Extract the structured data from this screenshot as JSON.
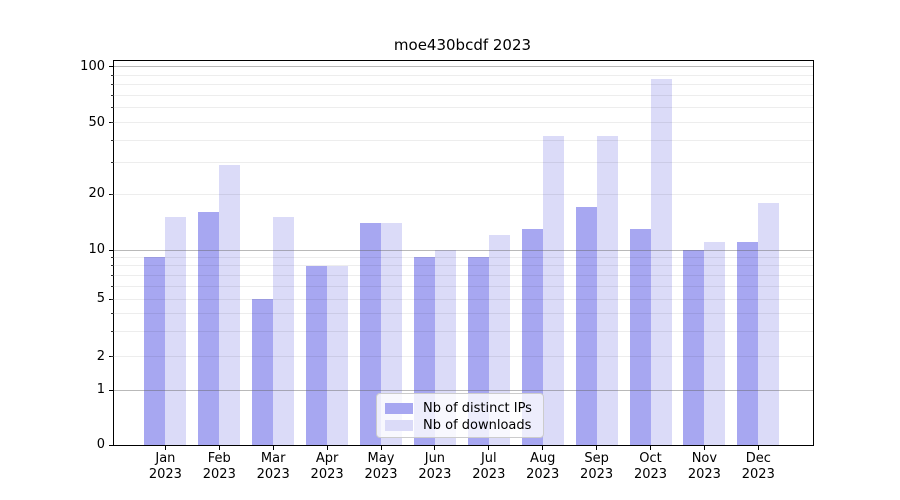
{
  "title": "moe430bcdf 2023",
  "chart_data": {
    "type": "bar",
    "title": "moe430bcdf 2023",
    "categories": [
      "Jan",
      "Feb",
      "Mar",
      "Apr",
      "May",
      "Jun",
      "Jul",
      "Aug",
      "Sep",
      "Oct",
      "Nov",
      "Dec"
    ],
    "x_year_label": "2023",
    "series": [
      {
        "name": "Nb of distinct IPs",
        "color": "#a7a7f1",
        "values": [
          9,
          16,
          5,
          8,
          14,
          9,
          9,
          13,
          17,
          13,
          10,
          11
        ]
      },
      {
        "name": "Nb of downloads",
        "color": "#dbdbf8",
        "values": [
          15,
          29,
          15,
          8,
          14,
          10,
          12,
          42,
          42,
          86,
          11,
          18
        ]
      }
    ],
    "ylabel": "",
    "xlabel": "",
    "yscale": "log-above-1-linear-below",
    "ytick_labels": [
      "0",
      "1",
      "2",
      "5",
      "10",
      "20",
      "50",
      "100"
    ],
    "ylim": [
      0,
      107
    ],
    "grid": "horizontal major+minor, drawn over bars",
    "legend_position": "inside-bottom-center"
  },
  "legend": {
    "items": [
      {
        "label": "Nb of distinct IPs",
        "color": "#a7a7f1"
      },
      {
        "label": "Nb of downloads",
        "color": "#dbdbf8"
      }
    ]
  },
  "colors": {
    "background": "#ffffff",
    "spine": "#000000",
    "major_grid": "rgba(100,100,100,0.45)",
    "minor_grid": "rgba(0,0,0,0.07)",
    "bar_dark": "#a7a7f1",
    "bar_light": "#dbdbf8"
  }
}
